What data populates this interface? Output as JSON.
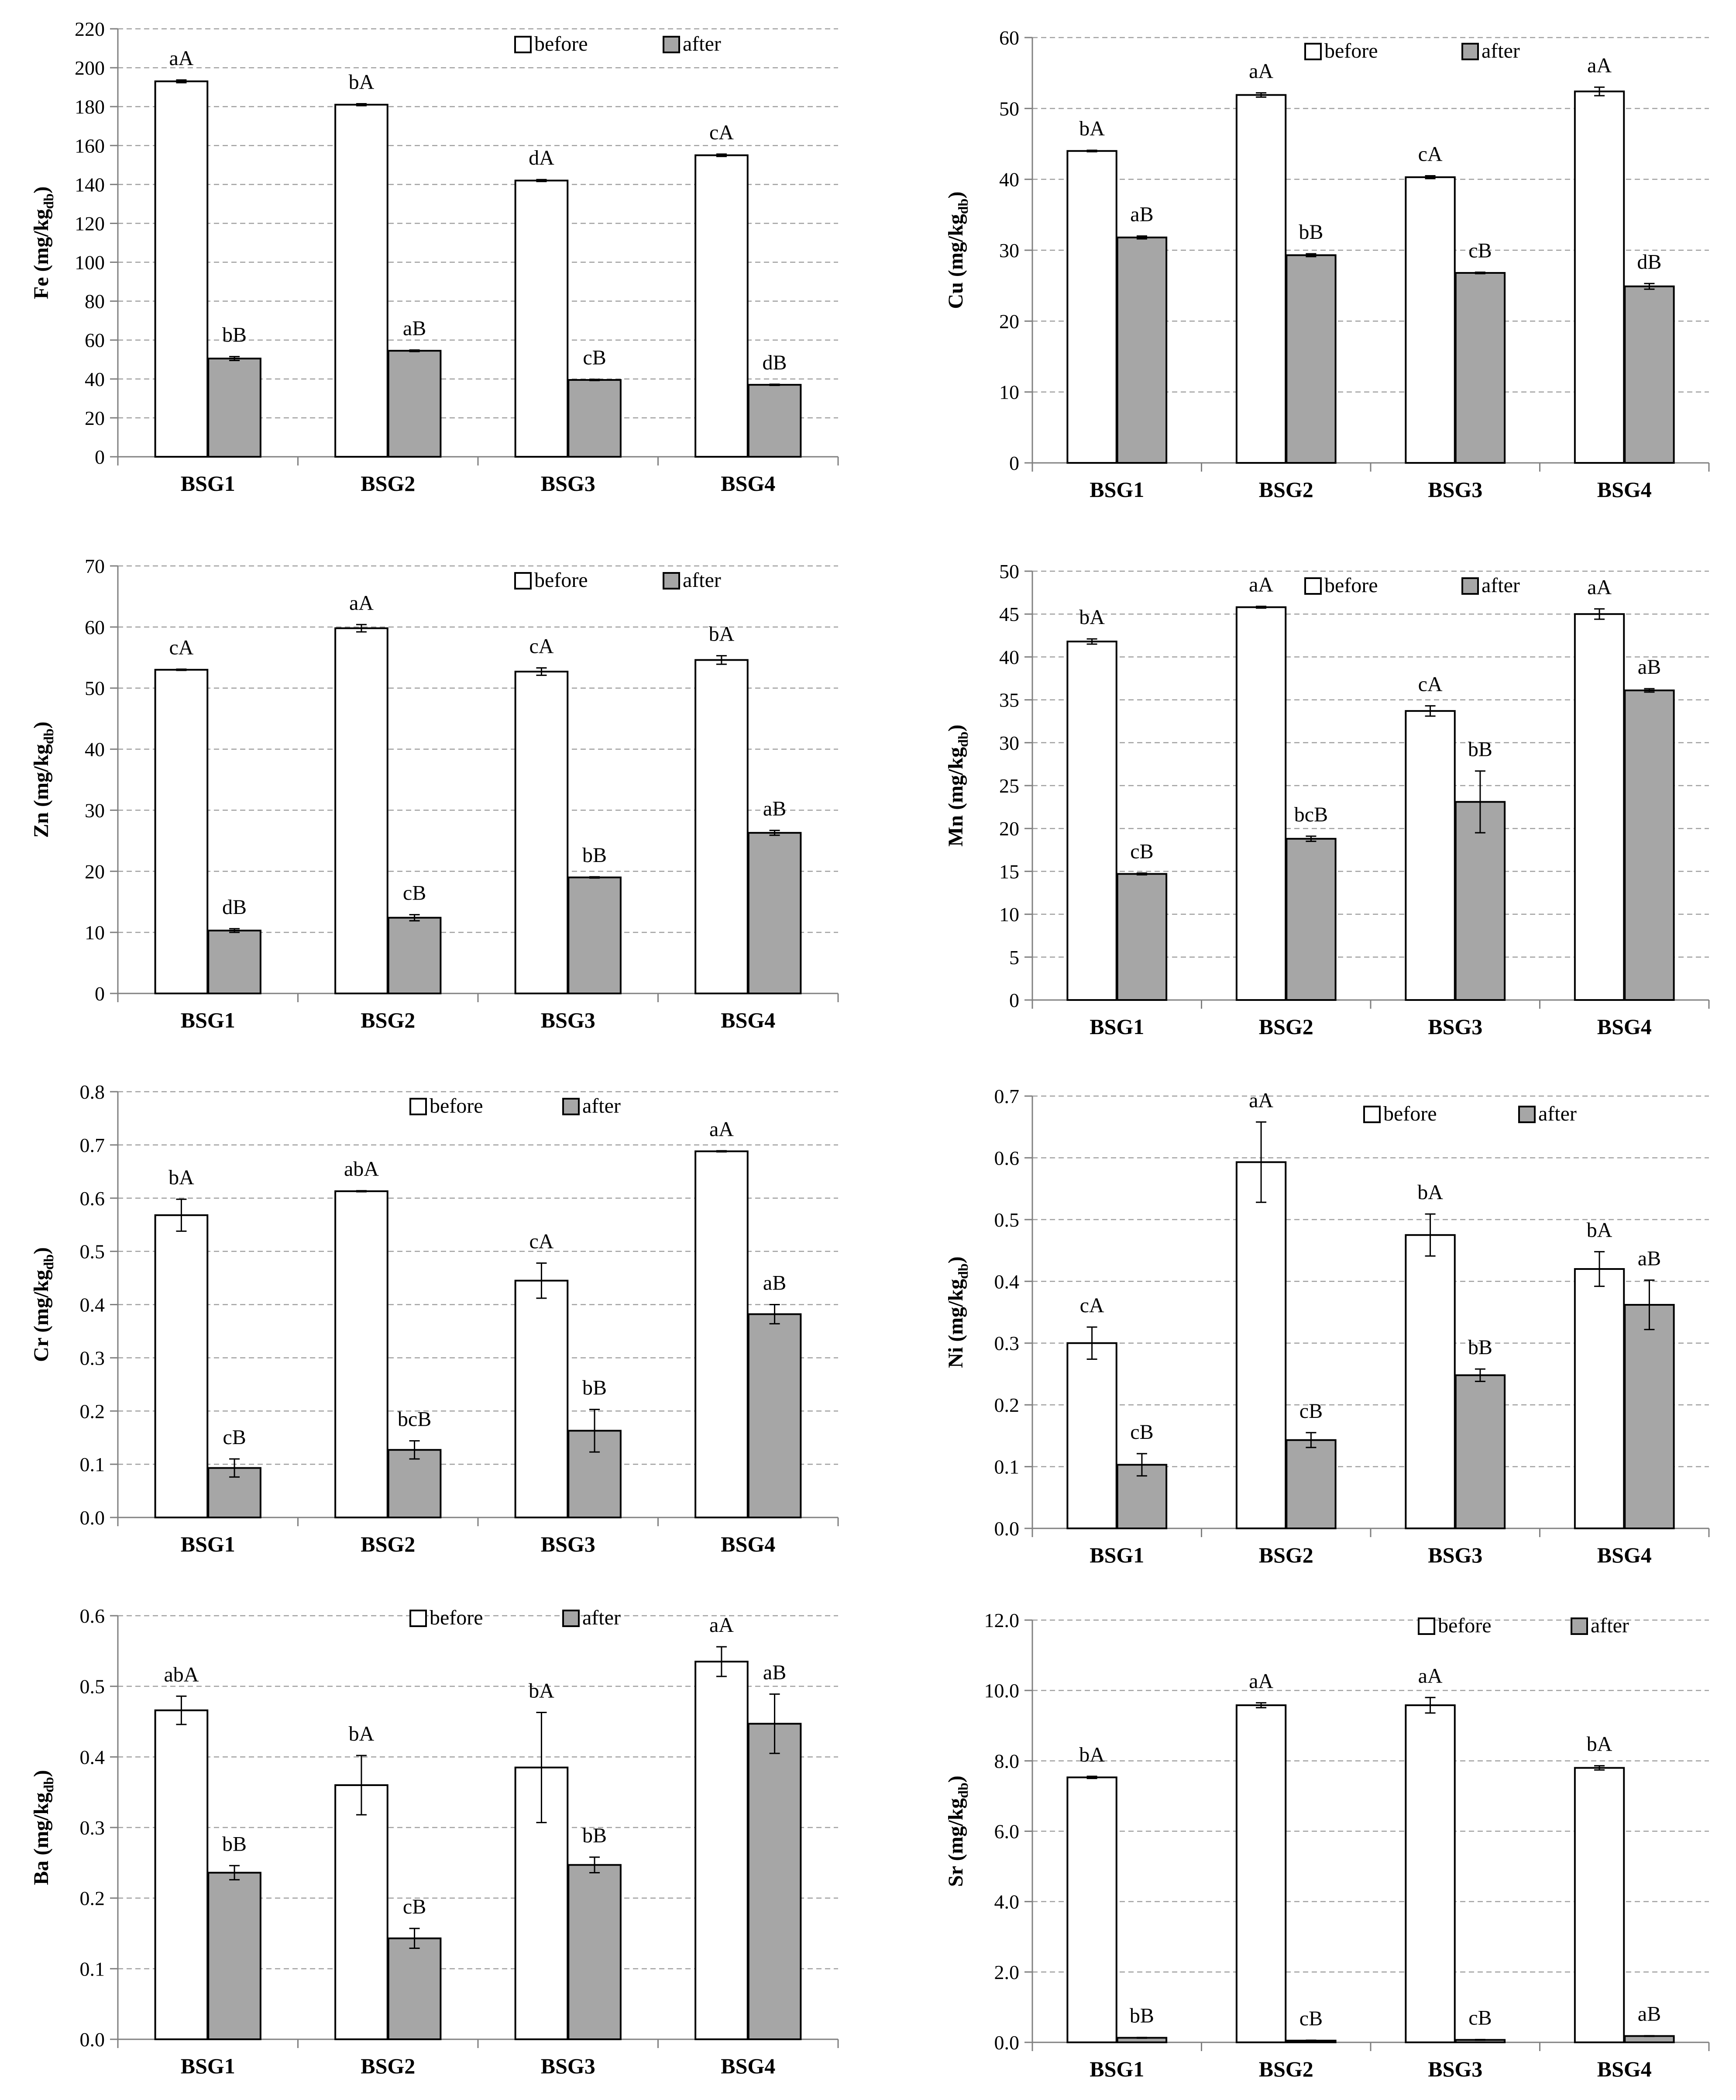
{
  "legend": {
    "before": "before",
    "after": "after"
  },
  "colors": {
    "before": "#ffffff",
    "after": "#a6a6a6",
    "stroke": "#000000",
    "grid": "#a0a0a0"
  },
  "chart_data": [
    {
      "type": "bar",
      "element": "Fe",
      "ylabel": "Fe (mg/kg",
      "ylabel_sub": "db",
      "ylabel_tail": ")",
      "categories": [
        "BSG1",
        "BSG2",
        "BSG3",
        "BSG4"
      ],
      "ylim": [
        0,
        220
      ],
      "ticks": [
        0,
        20,
        40,
        60,
        80,
        100,
        120,
        140,
        160,
        180,
        200,
        220
      ],
      "tick_decimals": 0,
      "series": [
        {
          "name": "before",
          "values": [
            193,
            181,
            142,
            155
          ],
          "errors": [
            0.7,
            0.5,
            0.5,
            0.6
          ],
          "labels": [
            "aA",
            "bA",
            "dA",
            "cA"
          ]
        },
        {
          "name": "after",
          "values": [
            50.5,
            54.5,
            39.5,
            37
          ],
          "errors": [
            1,
            0.4,
            0.3,
            0.3
          ],
          "labels": [
            "bB",
            "aB",
            "cB",
            "dB"
          ]
        }
      ]
    },
    {
      "type": "bar",
      "element": "Cu",
      "ylabel": "Cu (mg/kg",
      "ylabel_sub": "db",
      "ylabel_tail": ")",
      "categories": [
        "BSG1",
        "BSG2",
        "BSG3",
        "BSG4"
      ],
      "ylim": [
        0,
        60
      ],
      "ticks": [
        0,
        10,
        20,
        30,
        40,
        50,
        60
      ],
      "tick_decimals": 0,
      "series": [
        {
          "name": "before",
          "values": [
            44,
            51.9,
            40.3,
            52.4
          ],
          "errors": [
            0.1,
            0.3,
            0.2,
            0.6
          ],
          "labels": [
            "bA",
            "aA",
            "cA",
            "aA"
          ]
        },
        {
          "name": "after",
          "values": [
            31.8,
            29.3,
            26.8,
            24.9
          ],
          "errors": [
            0.2,
            0.2,
            0.1,
            0.4
          ],
          "labels": [
            "aB",
            "bB",
            "cB",
            "dB"
          ]
        }
      ]
    },
    {
      "type": "bar",
      "element": "Zn",
      "ylabel": "Zn (mg/kg",
      "ylabel_sub": "db",
      "ylabel_tail": ")",
      "categories": [
        "BSG1",
        "BSG2",
        "BSG3",
        "BSG4"
      ],
      "ylim": [
        0,
        70
      ],
      "ticks": [
        0,
        10,
        20,
        30,
        40,
        50,
        60,
        70
      ],
      "tick_decimals": 0,
      "series": [
        {
          "name": "before",
          "values": [
            53,
            59.8,
            52.7,
            54.6
          ],
          "errors": [
            0.1,
            0.6,
            0.6,
            0.7
          ],
          "labels": [
            "cA",
            "aA",
            "cA",
            "bA"
          ]
        },
        {
          "name": "after",
          "values": [
            10.3,
            12.4,
            19,
            26.3
          ],
          "errors": [
            0.3,
            0.5,
            0.1,
            0.4
          ],
          "labels": [
            "dB",
            "cB",
            "bB",
            "aB"
          ]
        }
      ]
    },
    {
      "type": "bar",
      "element": "Mn",
      "ylabel": "Mn (mg/kg",
      "ylabel_sub": "db",
      "ylabel_tail": ")",
      "categories": [
        "BSG1",
        "BSG2",
        "BSG3",
        "BSG4"
      ],
      "ylim": [
        0,
        50
      ],
      "ticks": [
        0,
        5,
        10,
        15,
        20,
        25,
        30,
        35,
        40,
        45,
        50
      ],
      "tick_decimals": 0,
      "series": [
        {
          "name": "before",
          "values": [
            41.8,
            45.8,
            33.7,
            45
          ],
          "errors": [
            0.3,
            0.1,
            0.6,
            0.6
          ],
          "labels": [
            "bA",
            "aA",
            "cA",
            "aA"
          ]
        },
        {
          "name": "after",
          "values": [
            14.7,
            18.8,
            23.1,
            36.1
          ],
          "errors": [
            0.1,
            0.3,
            3.6,
            0.2
          ],
          "labels": [
            "cB",
            "bcB",
            "bB",
            "aB"
          ]
        }
      ]
    },
    {
      "type": "bar",
      "element": "Cr",
      "ylabel": "Cr (mg/kg",
      "ylabel_sub": "db",
      "ylabel_tail": ")",
      "categories": [
        "BSG1",
        "BSG2",
        "BSG3",
        "BSG4"
      ],
      "ylim": [
        0,
        0.8
      ],
      "ticks": [
        0,
        0.1,
        0.2,
        0.3,
        0.4,
        0.5,
        0.6,
        0.7,
        0.8
      ],
      "tick_decimals": 1,
      "series": [
        {
          "name": "before",
          "values": [
            0.568,
            0.613,
            0.445,
            0.688
          ],
          "errors": [
            0.03,
            0.001,
            0.033,
            0.001
          ],
          "labels": [
            "bA",
            "abA",
            "cA",
            "aA"
          ]
        },
        {
          "name": "after",
          "values": [
            0.093,
            0.127,
            0.163,
            0.382
          ],
          "errors": [
            0.017,
            0.017,
            0.04,
            0.018
          ],
          "labels": [
            "cB",
            "bcB",
            "bB",
            "aB"
          ]
        }
      ]
    },
    {
      "type": "bar",
      "element": "Ni",
      "ylabel": "Ni (mg/kg",
      "ylabel_sub": "db",
      "ylabel_tail": ")",
      "categories": [
        "BSG1",
        "BSG2",
        "BSG3",
        "BSG4"
      ],
      "ylim": [
        0,
        0.7
      ],
      "ticks": [
        0,
        0.1,
        0.2,
        0.3,
        0.4,
        0.5,
        0.6,
        0.7
      ],
      "tick_decimals": 1,
      "series": [
        {
          "name": "before",
          "values": [
            0.3,
            0.593,
            0.475,
            0.42
          ],
          "errors": [
            0.026,
            0.065,
            0.034,
            0.028
          ],
          "labels": [
            "cA",
            "aA",
            "bA",
            "bA"
          ]
        },
        {
          "name": "after",
          "values": [
            0.103,
            0.143,
            0.248,
            0.362
          ],
          "errors": [
            0.018,
            0.012,
            0.01,
            0.04
          ],
          "labels": [
            "cB",
            "cB",
            "bB",
            "aB"
          ]
        }
      ]
    },
    {
      "type": "bar",
      "element": "Ba",
      "ylabel": "Ba (mg/kg",
      "ylabel_sub": "db",
      "ylabel_tail": ")",
      "categories": [
        "BSG1",
        "BSG2",
        "BSG3",
        "BSG4"
      ],
      "ylim": [
        0,
        0.6
      ],
      "ticks": [
        0,
        0.1,
        0.2,
        0.3,
        0.4,
        0.5,
        0.6
      ],
      "tick_decimals": 1,
      "series": [
        {
          "name": "before",
          "values": [
            0.466,
            0.36,
            0.385,
            0.535
          ],
          "errors": [
            0.02,
            0.042,
            0.078,
            0.021
          ],
          "labels": [
            "abA",
            "bA",
            "bA",
            "aA"
          ]
        },
        {
          "name": "after",
          "values": [
            0.236,
            0.143,
            0.247,
            0.447
          ],
          "errors": [
            0.01,
            0.014,
            0.011,
            0.042
          ],
          "labels": [
            "bB",
            "cB",
            "bB",
            "aB"
          ]
        }
      ]
    },
    {
      "type": "bar",
      "element": "Sr",
      "ylabel": "Sr (mg/kg",
      "ylabel_sub": "db",
      "ylabel_tail": ")",
      "categories": [
        "BSG1",
        "BSG2",
        "BSG3",
        "BSG4"
      ],
      "ylim": [
        0,
        12
      ],
      "ticks": [
        0,
        2,
        4,
        6,
        8,
        10,
        12
      ],
      "tick_decimals": 1,
      "series": [
        {
          "name": "before",
          "values": [
            7.53,
            9.58,
            9.58,
            7.8
          ],
          "errors": [
            0.03,
            0.07,
            0.22,
            0.06
          ],
          "labels": [
            "bA",
            "aA",
            "aA",
            "bA"
          ]
        },
        {
          "name": "after",
          "values": [
            0.13,
            0.05,
            0.07,
            0.18
          ],
          "errors": [
            0.01,
            0.01,
            0.01,
            0.01
          ],
          "labels": [
            "bB",
            "cB",
            "cB",
            "aB"
          ]
        }
      ]
    }
  ]
}
